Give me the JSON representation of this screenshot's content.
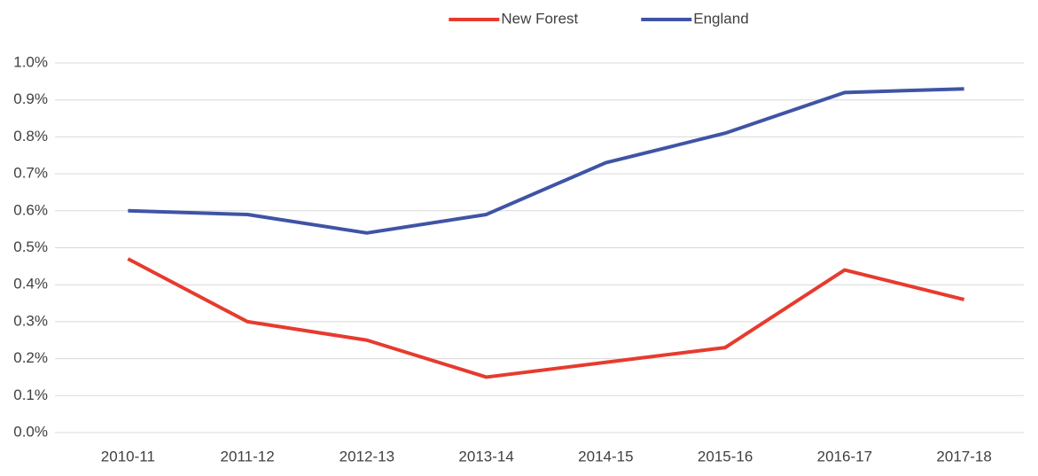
{
  "chart_data": {
    "type": "line",
    "categories": [
      "2010-11",
      "2011-12",
      "2012-13",
      "2013-14",
      "2014-15",
      "2015-16",
      "2016-17",
      "2017-18"
    ],
    "series": [
      {
        "name": "New Forest",
        "color": "#e63b2e",
        "values": [
          0.47,
          0.3,
          0.25,
          0.15,
          0.19,
          0.23,
          0.44,
          0.36
        ]
      },
      {
        "name": "England",
        "color": "#3f54a6",
        "values": [
          0.6,
          0.59,
          0.54,
          0.59,
          0.73,
          0.81,
          0.92,
          0.93
        ]
      }
    ],
    "ylim": [
      0,
      1.0
    ],
    "yticks": [
      {
        "value": 0,
        "label": "0.0%"
      },
      {
        "value": 0.1,
        "label": "0.1%"
      },
      {
        "value": 0.2,
        "label": "0.2%"
      },
      {
        "value": 0.3,
        "label": "0.3%"
      },
      {
        "value": 0.4,
        "label": "0.4%"
      },
      {
        "value": 0.5,
        "label": "0.5%"
      },
      {
        "value": 0.6,
        "label": "0.6%"
      },
      {
        "value": 0.7,
        "label": "0.7%"
      },
      {
        "value": 0.8,
        "label": "0.8%"
      },
      {
        "value": 0.9,
        "label": "0.9%"
      },
      {
        "value": 1.0,
        "label": "1.0%"
      }
    ],
    "grid": true,
    "legend": "top"
  }
}
